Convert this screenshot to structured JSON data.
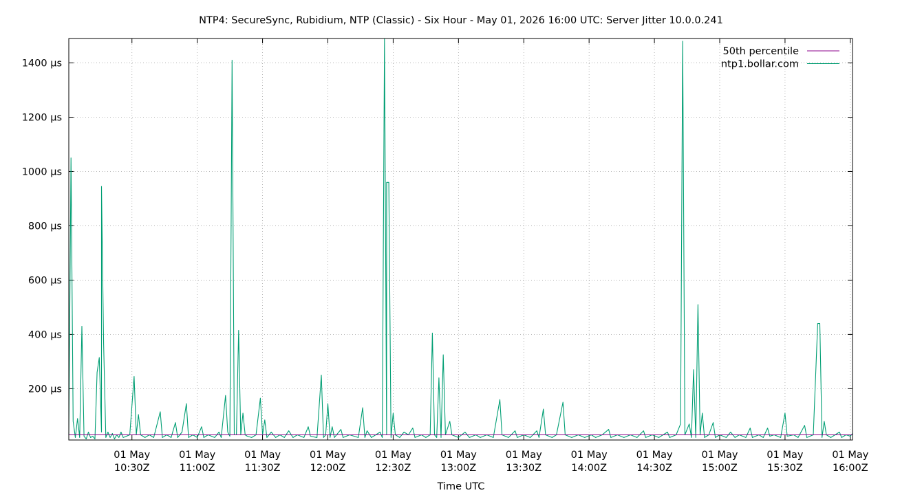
{
  "chart_data": {
    "type": "line",
    "title": "NTP4: SecureSync, Rubidium, NTP (Classic) - Six Hour - May 01, 2026 16:00 UTC: Server Jitter 10.0.0.241",
    "xlabel": "Time UTC",
    "ylabel": "",
    "x_range": [
      "2026-05-01T10:01Z",
      "2026-05-01T16:01Z"
    ],
    "ylim": [
      11,
      1490
    ],
    "y_ticks": [
      {
        "value": 200,
        "label": "200 µs"
      },
      {
        "value": 400,
        "label": "400 µs"
      },
      {
        "value": 600,
        "label": "600 µs"
      },
      {
        "value": 800,
        "label": "800 µs"
      },
      {
        "value": 1000,
        "label": "1000 µs"
      },
      {
        "value": 1200,
        "label": "1200 µs"
      },
      {
        "value": 1400,
        "label": "1400 µs"
      }
    ],
    "x_ticks": [
      {
        "time": "10:30",
        "date": "01 May",
        "label": "10:30Z"
      },
      {
        "time": "11:00",
        "date": "01 May",
        "label": "11:00Z"
      },
      {
        "time": "11:30",
        "date": "01 May",
        "label": "11:30Z"
      },
      {
        "time": "12:00",
        "date": "01 May",
        "label": "12:00Z"
      },
      {
        "time": "12:30",
        "date": "01 May",
        "label": "12:30Z"
      },
      {
        "time": "13:00",
        "date": "01 May",
        "label": "13:00Z"
      },
      {
        "time": "13:30",
        "date": "01 May",
        "label": "13:30Z"
      },
      {
        "time": "14:00",
        "date": "01 May",
        "label": "14:00Z"
      },
      {
        "time": "14:30",
        "date": "01 May",
        "label": "14:30Z"
      },
      {
        "time": "15:00",
        "date": "01 May",
        "label": "15:00Z"
      },
      {
        "time": "15:30",
        "date": "01 May",
        "label": "15:30Z"
      },
      {
        "time": "16:00",
        "date": "01 May",
        "label": "16:00Z"
      }
    ],
    "grid": true,
    "legend_position": "top-right",
    "series": [
      {
        "name": "50th percentile",
        "color": "#8b008b",
        "points": [
          [
            "10:01",
            30
          ],
          [
            "16:01",
            30
          ]
        ]
      },
      {
        "name": "ntp1.bollar.com",
        "color": "#009e73",
        "points": [
          [
            "10:01",
            30
          ],
          [
            "10:02",
            1050
          ],
          [
            "10:03",
            80
          ],
          [
            "10:04",
            20
          ],
          [
            "10:05",
            90
          ],
          [
            "10:06",
            20
          ],
          [
            "10:07",
            430
          ],
          [
            "10:08",
            25
          ],
          [
            "10:09",
            15
          ],
          [
            "10:10",
            40
          ],
          [
            "10:11",
            20
          ],
          [
            "10:12",
            25
          ],
          [
            "10:13",
            15
          ],
          [
            "10:14",
            260
          ],
          [
            "10:15",
            315
          ],
          [
            "10:16",
            40
          ],
          [
            "10:16",
            945
          ],
          [
            "10:17",
            365
          ],
          [
            "10:18",
            20
          ],
          [
            "10:19",
            40
          ],
          [
            "10:20",
            20
          ],
          [
            "10:21",
            35
          ],
          [
            "10:22",
            15
          ],
          [
            "10:23",
            30
          ],
          [
            "10:24",
            20
          ],
          [
            "10:25",
            40
          ],
          [
            "10:26",
            20
          ],
          [
            "10:29",
            30
          ],
          [
            "10:31",
            245
          ],
          [
            "10:32",
            30
          ],
          [
            "10:33",
            105
          ],
          [
            "10:34",
            30
          ],
          [
            "10:36",
            20
          ],
          [
            "10:38",
            30
          ],
          [
            "10:40",
            20
          ],
          [
            "10:43",
            115
          ],
          [
            "10:44",
            20
          ],
          [
            "10:46",
            30
          ],
          [
            "10:48",
            20
          ],
          [
            "10:50",
            75
          ],
          [
            "10:51",
            20
          ],
          [
            "10:53",
            40
          ],
          [
            "10:55",
            145
          ],
          [
            "10:56",
            20
          ],
          [
            "10:58",
            30
          ],
          [
            "11:00",
            20
          ],
          [
            "11:02",
            60
          ],
          [
            "11:03",
            20
          ],
          [
            "11:05",
            30
          ],
          [
            "11:08",
            20
          ],
          [
            "11:10",
            40
          ],
          [
            "11:11",
            20
          ],
          [
            "11:13",
            175
          ],
          [
            "11:14",
            40
          ],
          [
            "11:15",
            25
          ],
          [
            "11:16",
            1410
          ],
          [
            "11:17",
            30
          ],
          [
            "11:18",
            30
          ],
          [
            "11:19",
            415
          ],
          [
            "11:20",
            30
          ],
          [
            "11:21",
            110
          ],
          [
            "11:22",
            30
          ],
          [
            "11:23",
            25
          ],
          [
            "11:25",
            20
          ],
          [
            "11:27",
            30
          ],
          [
            "11:29",
            165
          ],
          [
            "11:30",
            30
          ],
          [
            "11:31",
            85
          ],
          [
            "11:32",
            20
          ],
          [
            "11:34",
            40
          ],
          [
            "11:36",
            20
          ],
          [
            "11:38",
            30
          ],
          [
            "11:40",
            20
          ],
          [
            "11:42",
            45
          ],
          [
            "11:44",
            20
          ],
          [
            "11:46",
            30
          ],
          [
            "11:49",
            20
          ],
          [
            "11:51",
            60
          ],
          [
            "11:52",
            25
          ],
          [
            "11:55",
            20
          ],
          [
            "11:57",
            250
          ],
          [
            "11:58",
            20
          ],
          [
            "11:59",
            30
          ],
          [
            "12:00",
            145
          ],
          [
            "12:01",
            20
          ],
          [
            "12:02",
            60
          ],
          [
            "12:03",
            20
          ],
          [
            "12:06",
            50
          ],
          [
            "12:07",
            20
          ],
          [
            "12:10",
            30
          ],
          [
            "12:14",
            20
          ],
          [
            "12:16",
            130
          ],
          [
            "12:17",
            20
          ],
          [
            "12:18",
            45
          ],
          [
            "12:20",
            20
          ],
          [
            "12:22",
            30
          ],
          [
            "12:24",
            40
          ],
          [
            "12:25",
            20
          ],
          [
            "12:26",
            1490
          ],
          [
            "12:27",
            30
          ],
          [
            "12:27",
            960
          ],
          [
            "12:28",
            960
          ],
          [
            "12:29",
            20
          ],
          [
            "12:30",
            110
          ],
          [
            "12:31",
            30
          ],
          [
            "12:33",
            20
          ],
          [
            "12:35",
            40
          ],
          [
            "12:37",
            30
          ],
          [
            "12:39",
            55
          ],
          [
            "12:40",
            20
          ],
          [
            "12:43",
            30
          ],
          [
            "12:45",
            20
          ],
          [
            "12:47",
            30
          ],
          [
            "12:48",
            405
          ],
          [
            "12:49",
            30
          ],
          [
            "12:50",
            20
          ],
          [
            "12:51",
            240
          ],
          [
            "12:52",
            20
          ],
          [
            "12:53",
            325
          ],
          [
            "12:54",
            30
          ],
          [
            "12:56",
            80
          ],
          [
            "12:57",
            30
          ],
          [
            "13:00",
            20
          ],
          [
            "13:03",
            40
          ],
          [
            "13:05",
            20
          ],
          [
            "13:08",
            30
          ],
          [
            "13:10",
            20
          ],
          [
            "13:13",
            30
          ],
          [
            "13:16",
            20
          ],
          [
            "13:19",
            160
          ],
          [
            "13:20",
            30
          ],
          [
            "13:23",
            20
          ],
          [
            "13:26",
            45
          ],
          [
            "13:27",
            20
          ],
          [
            "13:30",
            30
          ],
          [
            "13:33",
            20
          ],
          [
            "13:36",
            45
          ],
          [
            "13:37",
            20
          ],
          [
            "13:39",
            125
          ],
          [
            "13:40",
            30
          ],
          [
            "13:43",
            20
          ],
          [
            "13:45",
            30
          ],
          [
            "13:48",
            150
          ],
          [
            "13:49",
            30
          ],
          [
            "13:52",
            20
          ],
          [
            "13:55",
            30
          ],
          [
            "13:58",
            20
          ],
          [
            "14:01",
            30
          ],
          [
            "14:03",
            20
          ],
          [
            "14:06",
            30
          ],
          [
            "14:09",
            50
          ],
          [
            "14:10",
            20
          ],
          [
            "14:13",
            30
          ],
          [
            "14:16",
            20
          ],
          [
            "14:19",
            30
          ],
          [
            "14:22",
            20
          ],
          [
            "14:25",
            45
          ],
          [
            "14:26",
            20
          ],
          [
            "14:29",
            30
          ],
          [
            "14:32",
            20
          ],
          [
            "14:34",
            30
          ],
          [
            "14:36",
            40
          ],
          [
            "14:37",
            20
          ],
          [
            "14:40",
            30
          ],
          [
            "14:42",
            70
          ],
          [
            "14:43",
            1480
          ],
          [
            "14:44",
            30
          ],
          [
            "14:46",
            70
          ],
          [
            "14:47",
            20
          ],
          [
            "14:48",
            270
          ],
          [
            "14:49",
            20
          ],
          [
            "14:50",
            510
          ],
          [
            "14:51",
            30
          ],
          [
            "14:52",
            110
          ],
          [
            "14:53",
            20
          ],
          [
            "14:55",
            30
          ],
          [
            "14:57",
            75
          ],
          [
            "14:58",
            20
          ],
          [
            "15:00",
            30
          ],
          [
            "15:03",
            20
          ],
          [
            "15:05",
            40
          ],
          [
            "15:07",
            20
          ],
          [
            "15:09",
            30
          ],
          [
            "15:12",
            20
          ],
          [
            "15:14",
            55
          ],
          [
            "15:15",
            20
          ],
          [
            "15:18",
            30
          ],
          [
            "15:20",
            20
          ],
          [
            "15:22",
            55
          ],
          [
            "15:23",
            25
          ],
          [
            "15:25",
            30
          ],
          [
            "15:28",
            20
          ],
          [
            "15:30",
            110
          ],
          [
            "15:31",
            25
          ],
          [
            "15:34",
            30
          ],
          [
            "15:36",
            20
          ],
          [
            "15:39",
            65
          ],
          [
            "15:40",
            20
          ],
          [
            "15:43",
            30
          ],
          [
            "15:45",
            440
          ],
          [
            "15:46",
            440
          ],
          [
            "15:47",
            20
          ],
          [
            "15:48",
            80
          ],
          [
            "15:49",
            30
          ],
          [
            "15:51",
            20
          ],
          [
            "15:53",
            30
          ],
          [
            "15:55",
            40
          ],
          [
            "15:56",
            20
          ],
          [
            "15:58",
            30
          ],
          [
            "16:00",
            25
          ],
          [
            "16:01",
            35
          ]
        ]
      }
    ]
  }
}
